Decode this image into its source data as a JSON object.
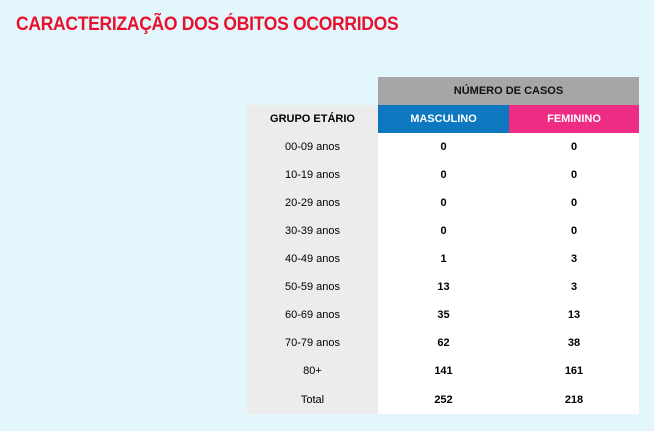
{
  "title": "CARACTERIZAÇÃO DOS ÓBITOS OCORRIDOS",
  "table": {
    "group_header": "NÚMERO DE CASOS",
    "columns": {
      "age": "GRUPO ETÁRIO",
      "male": "MASCULINO",
      "female": "FEMININO"
    },
    "rows": [
      {
        "age": "00-09 anos",
        "male": "0",
        "female": "0"
      },
      {
        "age": "10-19 anos",
        "male": "0",
        "female": "0"
      },
      {
        "age": "20-29 anos",
        "male": "0",
        "female": "0"
      },
      {
        "age": "30-39 anos",
        "male": "0",
        "female": "0"
      },
      {
        "age": "40-49 anos",
        "male": "1",
        "female": "3"
      },
      {
        "age": "50-59 anos",
        "male": "13",
        "female": "3"
      },
      {
        "age": "60-69 anos",
        "male": "35",
        "female": "13"
      },
      {
        "age": "70-79 anos",
        "male": "62",
        "female": "38"
      },
      {
        "age": "80+",
        "male": "141",
        "female": "161"
      },
      {
        "age": "Total",
        "male": "252",
        "female": "218"
      }
    ]
  },
  "colors": {
    "title": "#e8112d",
    "background": "#e3f6fb",
    "group_header": "#a6a6a6",
    "male_header": "#0d77c0",
    "female_header": "#ee2c84",
    "age_column": "#ececec"
  }
}
